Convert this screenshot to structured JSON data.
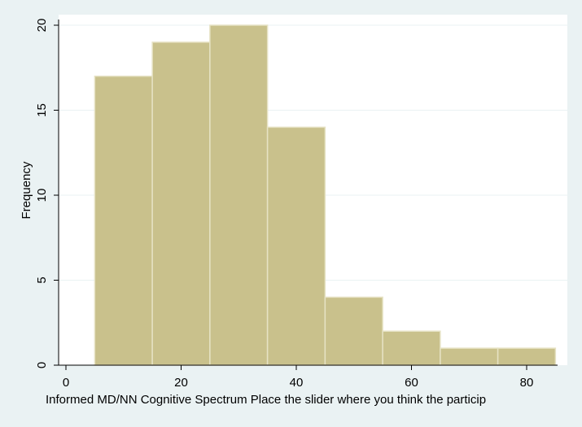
{
  "chart_data": {
    "type": "bar",
    "subtype": "histogram",
    "xlabel": "Informed MD/NN Cognitive Spectrum  Place the slider where you think the particip",
    "ylabel": "Frequency",
    "bin_width": 10,
    "bins": [
      {
        "start": 5,
        "end": 15,
        "value": 17
      },
      {
        "start": 15,
        "end": 25,
        "value": 19
      },
      {
        "start": 25,
        "end": 35,
        "value": 20
      },
      {
        "start": 35,
        "end": 45,
        "value": 14
      },
      {
        "start": 45,
        "end": 55,
        "value": 4
      },
      {
        "start": 55,
        "end": 65,
        "value": 2
      },
      {
        "start": 65,
        "end": 75,
        "value": 1
      },
      {
        "start": 75,
        "end": 85,
        "value": 1
      }
    ],
    "xlim": [
      0,
      85
    ],
    "ylim": [
      0,
      20
    ],
    "xticks": [
      0,
      20,
      40,
      60,
      80
    ],
    "xtick_labels": [
      "0",
      "20",
      "40",
      "60",
      "80"
    ],
    "yticks": [
      0,
      5,
      10,
      15,
      20
    ],
    "ytick_labels": [
      "0",
      "5",
      "10",
      "15",
      "20"
    ],
    "grid": true,
    "colors": {
      "background": "#eaf2f3",
      "plot_area": "#ffffff",
      "bar_fill": "#c9c18c",
      "bar_stroke": "#e6e2c4",
      "grid": "#eaf2f3",
      "axis": "#000000"
    }
  }
}
